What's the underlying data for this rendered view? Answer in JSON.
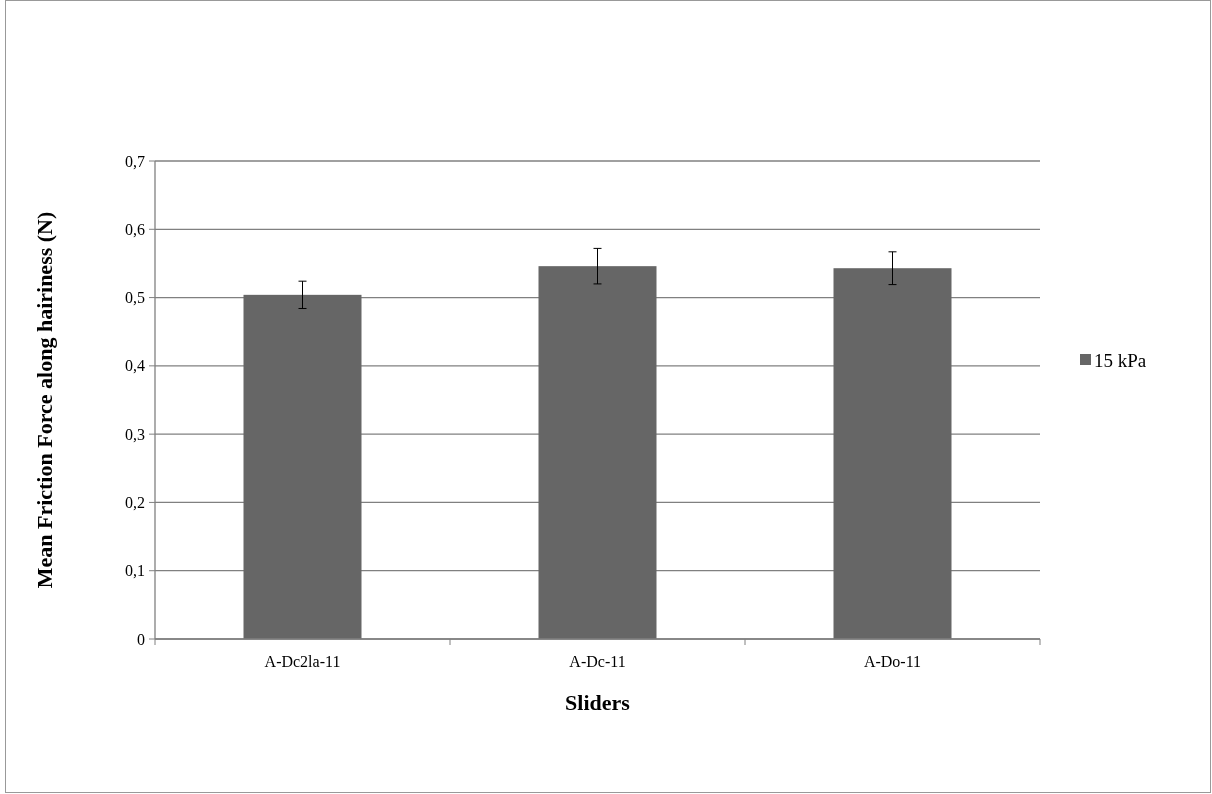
{
  "chart_data": {
    "type": "bar",
    "xlabel": "Sliders",
    "ylabel": "Mean Friction Force along hairiness (N)",
    "categories": [
      "A-Dc2la-11",
      "A-Dc-11",
      "A-Do-11"
    ],
    "series": [
      {
        "name": "15 kPa",
        "color": "#666666",
        "values": [
          0.504,
          0.546,
          0.543
        ],
        "errors": [
          0.02,
          0.026,
          0.024
        ]
      }
    ],
    "ylim": [
      0,
      0.7
    ],
    "yticks": [
      0,
      {
        "value": 0.1,
        "label": "0,1"
      },
      {
        "value": 0.2,
        "label": "0,2"
      },
      {
        "value": 0.3,
        "label": "0,3"
      },
      {
        "value": 0.4,
        "label": "0,4"
      },
      {
        "value": 0.5,
        "label": "0,5"
      },
      {
        "value": 0.6,
        "label": "0,6"
      },
      {
        "value": 0.7,
        "label": "0,7"
      }
    ],
    "grid": "y",
    "legend": "right"
  }
}
